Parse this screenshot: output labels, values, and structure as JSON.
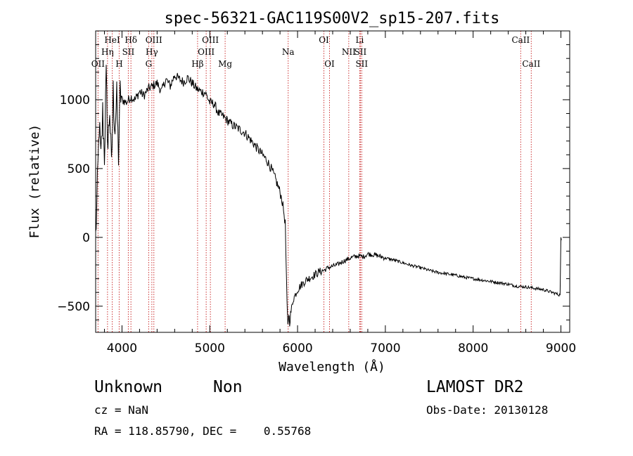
{
  "chart_data": {
    "type": "line",
    "title": "spec-56321-GAC119S00V2_sp15-207.fits",
    "xlabel": "Wavelength (Å)",
    "ylabel": "Flux (relative)",
    "xlim": [
      3700,
      9100
    ],
    "ylim": [
      -690,
      1500
    ],
    "xticks": [
      4000,
      5000,
      6000,
      7000,
      8000,
      9000
    ],
    "yticks": [
      -500,
      0,
      500,
      1000
    ],
    "grid": false,
    "legend": "none",
    "line_color": "#000000",
    "marker_color": "#cc3333",
    "series": [
      {
        "x": [
          3700,
          3720,
          3740,
          3760,
          3780,
          3800,
          3820,
          3840,
          3860,
          3880,
          3900,
          3920,
          3940,
          3960,
          3980,
          4000,
          4050,
          4100,
          4150,
          4200,
          4250,
          4300,
          4350,
          4400,
          4450,
          4500,
          4550,
          4600,
          4650,
          4700,
          4750,
          4800,
          4850,
          4900,
          4950,
          5000,
          5050,
          5100,
          5150,
          5200,
          5250,
          5300,
          5350,
          5400,
          5450,
          5500,
          5550,
          5600,
          5650,
          5700,
          5750,
          5800,
          5820,
          5840,
          5860,
          5880,
          5890,
          5900,
          5910,
          5920,
          5950,
          6000,
          6050,
          6100,
          6150,
          6200,
          6250,
          6300,
          6350,
          6400,
          6450,
          6500,
          6550,
          6600,
          6650,
          6700,
          6750,
          6800,
          6900,
          7000,
          7100,
          7200,
          7300,
          7400,
          7500,
          7600,
          7700,
          7800,
          7900,
          8000,
          8100,
          8200,
          8300,
          8400,
          8500,
          8600,
          8700,
          8800,
          8900,
          8950,
          8990,
          9000,
          9005
        ],
        "y": [
          0,
          350,
          820,
          550,
          900,
          600,
          1150,
          650,
          950,
          480,
          1050,
          800,
          1000,
          600,
          1050,
          1000,
          980,
          1020,
          1000,
          1060,
          1030,
          1080,
          1100,
          1120,
          1060,
          1150,
          1100,
          1180,
          1150,
          1130,
          1160,
          1120,
          1080,
          1060,
          1050,
          980,
          970,
          900,
          880,
          850,
          820,
          800,
          780,
          760,
          720,
          680,
          640,
          600,
          560,
          500,
          420,
          330,
          280,
          200,
          100,
          -500,
          -650,
          -550,
          -620,
          -560,
          -450,
          -380,
          -340,
          -310,
          -290,
          -270,
          -250,
          -240,
          -220,
          -210,
          -200,
          -180,
          -165,
          -150,
          -140,
          -135,
          -140,
          -120,
          -130,
          -150,
          -165,
          -185,
          -205,
          -220,
          -240,
          -255,
          -265,
          -275,
          -290,
          -300,
          -310,
          -320,
          -330,
          -340,
          -355,
          -360,
          -370,
          -380,
          -400,
          -410,
          -420,
          0,
          -20
        ]
      }
    ],
    "line_markers": [
      {
        "x": 3727,
        "label": "OII",
        "row": 3
      },
      {
        "x": 3835,
        "label": "Hη",
        "row": 2
      },
      {
        "x": 3889,
        "label": "HeI",
        "row": 1
      },
      {
        "x": 3968,
        "label": "H",
        "row": 3
      },
      {
        "x": 4102,
        "label": "Hδ",
        "row": 1
      },
      {
        "x": 4072,
        "label": "SII",
        "row": 2
      },
      {
        "x": 4304,
        "label": "G",
        "row": 3
      },
      {
        "x": 4340,
        "label": "Hγ",
        "row": 2
      },
      {
        "x": 4363,
        "label": "OIII",
        "row": 1
      },
      {
        "x": 4861,
        "label": "Hβ",
        "row": 3
      },
      {
        "x": 4959,
        "label": "OIII",
        "row": 2
      },
      {
        "x": 5007,
        "label": "OIII",
        "row": 1
      },
      {
        "x": 5175,
        "label": "Mg",
        "row": 3
      },
      {
        "x": 5893,
        "label": "Na",
        "row": 2
      },
      {
        "x": 6300,
        "label": "OI",
        "row": 1
      },
      {
        "x": 6364,
        "label": "OI",
        "row": 3
      },
      {
        "x": 6583,
        "label": "NII",
        "row": 2
      },
      {
        "x": 6708,
        "label": "Li",
        "row": 1
      },
      {
        "x": 6716,
        "label": "SII",
        "row": 2
      },
      {
        "x": 6731,
        "label": "SII",
        "row": 3
      },
      {
        "x": 8542,
        "label": "CaII",
        "row": 1
      },
      {
        "x": 8662,
        "label": "CaII",
        "row": 3
      }
    ]
  },
  "footer": {
    "object_class": "Unknown",
    "object_subclass": "Non",
    "survey": "LAMOST DR2",
    "redshift": "cz = NaN",
    "obs_date": "Obs-Date: 20130128",
    "coords": "RA = 118.85790, DEC =    0.55768"
  }
}
